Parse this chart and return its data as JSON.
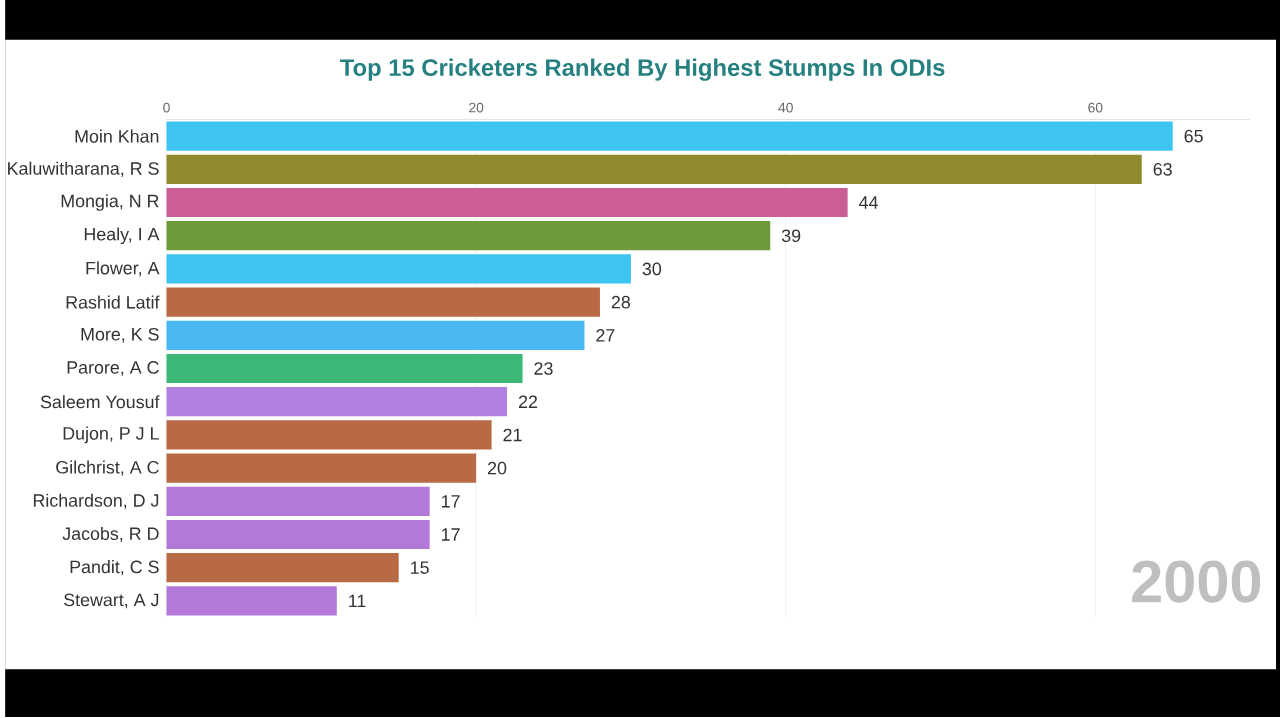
{
  "chart_data": {
    "type": "bar",
    "orientation": "horizontal",
    "title": "Top 15 Cricketers Ranked By Highest Stumps In ODIs",
    "categories": [
      "Moin Khan",
      "Kaluwitharana, R S",
      "Mongia, N R",
      "Healy, I A",
      "Flower, A",
      "Rashid Latif",
      "More, K S",
      "Parore, A C",
      "Saleem Yousuf",
      "Dujon, P J L",
      "Gilchrist, A C",
      "Richardson, D J",
      "Jacobs, R D",
      "Pandit, C S",
      "Stewart, A J"
    ],
    "values": [
      65,
      63,
      44,
      39,
      30,
      28,
      27,
      23,
      22,
      21,
      20,
      17,
      17,
      15,
      11
    ],
    "colors": [
      "#3ec4f0",
      "#8f8a2e",
      "#cc5e96",
      "#6f9a3a",
      "#3ec4f0",
      "#b86a44",
      "#4ab8f0",
      "#3cb878",
      "#b081e0",
      "#b86a44",
      "#b86a44",
      "#b478d8",
      "#b478d8",
      "#b86a44",
      "#b478d8"
    ],
    "xlim": [
      0,
      70
    ],
    "xticks": [
      0,
      20,
      40,
      60
    ],
    "grid": "x",
    "data_labels": true,
    "annotations": [
      "2000"
    ]
  }
}
